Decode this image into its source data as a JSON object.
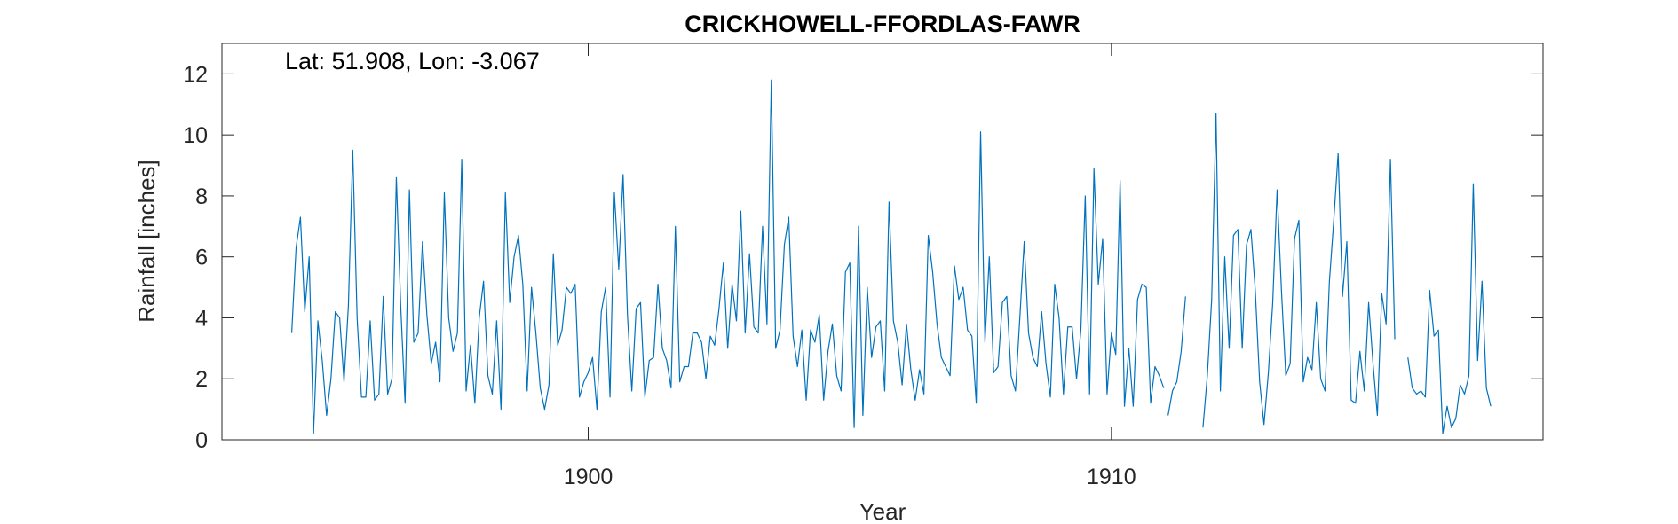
{
  "chart_data": {
    "type": "line",
    "title": "CRICKHOWELL-FFORDLAS-FAWR",
    "annotation": "Lat: 51.908, Lon: -3.067",
    "xlabel": "Year",
    "ylabel": "Rainfall [inches]",
    "xlim": [
      1893.0,
      1918.25
    ],
    "ylim": [
      0,
      13
    ],
    "xticks": [
      1900,
      1910
    ],
    "yticks": [
      0,
      2,
      4,
      6,
      8,
      10,
      12
    ],
    "grid": false,
    "line_color": "#0072BD",
    "series": [
      {
        "start_year": 1894,
        "start_month": 5,
        "values": [
          3.5,
          6.3,
          7.3,
          4.2,
          6.0,
          0.2,
          3.9,
          2.6,
          0.8,
          2.0,
          4.2,
          4.0,
          1.9,
          4.4,
          9.5,
          4.0,
          1.4,
          1.4,
          3.9,
          1.3,
          1.5,
          4.7,
          1.5,
          2.0,
          8.6,
          4.4,
          1.2,
          8.2,
          3.2,
          3.5,
          6.5,
          4.1,
          2.5,
          3.2,
          1.9,
          8.1,
          4.0,
          2.9,
          3.5,
          9.2,
          1.6,
          3.1,
          1.2,
          4.0,
          5.2,
          2.1,
          1.5,
          3.9,
          1.0,
          8.1,
          4.5,
          6.0,
          6.7,
          5.1,
          1.6,
          5.0,
          3.5,
          1.7,
          1.0,
          1.8,
          6.1,
          3.1,
          3.6,
          5.0,
          4.8,
          5.1,
          1.4,
          1.9,
          2.2,
          2.7,
          1.0,
          4.2,
          5.0,
          1.4,
          8.1,
          5.6,
          8.7,
          4.1,
          1.6,
          4.3,
          4.5,
          1.4,
          2.6,
          2.7,
          5.1,
          3.0,
          2.6,
          1.7,
          7.0,
          1.9,
          2.4,
          2.4,
          3.5,
          3.5,
          3.2,
          2.0,
          3.4,
          3.1,
          4.3,
          5.8,
          3.0,
          5.1,
          3.9,
          7.5,
          3.5,
          6.1,
          3.7,
          3.5,
          7.0,
          3.8,
          11.8,
          3.0,
          3.6,
          6.4,
          7.3,
          3.4,
          2.4,
          3.6,
          1.3,
          3.6,
          3.2,
          4.1,
          1.3,
          2.9,
          3.8,
          2.1,
          1.6,
          5.5,
          5.8,
          0.4,
          7.0,
          0.8,
          5.0,
          2.7,
          3.7,
          3.9,
          1.6,
          7.8,
          3.9,
          3.2,
          1.8,
          3.8,
          2.3,
          1.3,
          2.3,
          1.5,
          6.7,
          5.5,
          3.8,
          2.7,
          2.4,
          2.1,
          5.7,
          4.6,
          5.0,
          3.6,
          3.4,
          1.2,
          10.1,
          3.2,
          6.0,
          2.2,
          2.4,
          4.5,
          4.7,
          2.1,
          1.6,
          4.0,
          6.5,
          3.5,
          2.7,
          2.4,
          4.2,
          2.5,
          1.4,
          5.1,
          4.0,
          1.5,
          3.7,
          3.7,
          2.0,
          3.6,
          8.0,
          1.5,
          8.9,
          5.1,
          6.6,
          1.5,
          3.5,
          2.8,
          8.5,
          1.1,
          3.0,
          1.1,
          4.6,
          5.1,
          5.0,
          1.2,
          2.4,
          2.1,
          1.7
        ]
      },
      {
        "start_year": 1911,
        "start_month": 2,
        "values": [
          0.8,
          1.6,
          1.9,
          2.9,
          4.7
        ]
      },
      {
        "start_year": 1911,
        "start_month": 10,
        "values": [
          0.4,
          2.1,
          4.6,
          10.7,
          1.6,
          6.0,
          3.0,
          6.7,
          6.9,
          3.0,
          6.4,
          6.9,
          4.9,
          1.9,
          0.5,
          2.2,
          4.5,
          8.2,
          4.9,
          2.1,
          2.5,
          6.6,
          7.2,
          1.9,
          2.7,
          2.3,
          4.5,
          2.0,
          1.6,
          5.2,
          7.2,
          9.4,
          4.7,
          6.5,
          1.3,
          1.2,
          2.9,
          1.6,
          4.5,
          2.5,
          0.8,
          4.8,
          3.8,
          9.2,
          3.3
        ]
      },
      {
        "start_year": 1915,
        "start_month": 9,
        "values": [
          2.7,
          1.7,
          1.5,
          1.6,
          1.4,
          4.9,
          3.4,
          3.6,
          0.2,
          1.1,
          0.4,
          0.7,
          1.8,
          1.5,
          2.1,
          8.4,
          2.6,
          5.2,
          1.7,
          1.1
        ]
      }
    ]
  }
}
